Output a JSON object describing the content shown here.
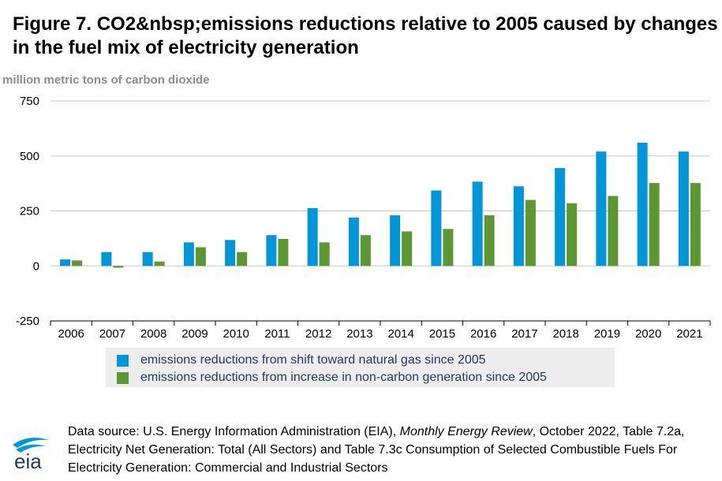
{
  "figure": {
    "title_line1": "Figure 7. CO2&nbsp;emissions reductions relative to 2005 caused by changes",
    "title_line2": "in the fuel mix of electricity generation"
  },
  "chart_data": {
    "type": "bar",
    "ylabel": "million metric tons of carbon dioxide",
    "ylim": [
      -250,
      750
    ],
    "yticks": [
      -250,
      0,
      250,
      500,
      750
    ],
    "grid": true,
    "legend_position": "bottom",
    "categories": [
      "2006",
      "2007",
      "2008",
      "2009",
      "2010",
      "2011",
      "2012",
      "2013",
      "2014",
      "2015",
      "2016",
      "2017",
      "2018",
      "2019",
      "2020",
      "2021"
    ],
    "series": [
      {
        "name": "emissions reductions from shift toward natural gas since 2005",
        "color": "#0096d7",
        "values": [
          30,
          63,
          63,
          107,
          118,
          140,
          263,
          220,
          230,
          343,
          383,
          362,
          445,
          520,
          560,
          520
        ]
      },
      {
        "name": "emissions reductions from increase in non-carbon generation since 2005",
        "color": "#5d9732",
        "values": [
          25,
          -8,
          20,
          85,
          63,
          123,
          107,
          140,
          157,
          168,
          230,
          300,
          285,
          318,
          377,
          377
        ]
      }
    ]
  },
  "source": {
    "prefix": "Data source: U.S. Energy Information Administration (EIA), ",
    "publication": "Monthly Energy Review",
    "suffix": ", October 2022, Table 7.2a, Electricity Net Generation: Total (All Sectors) and Table 7.3c Consumption of Selected Combustible Fuels For Electricity Generation: Commercial and Industrial Sectors"
  },
  "logo": {
    "text": "eia",
    "icon": "eia-logo-icon"
  }
}
